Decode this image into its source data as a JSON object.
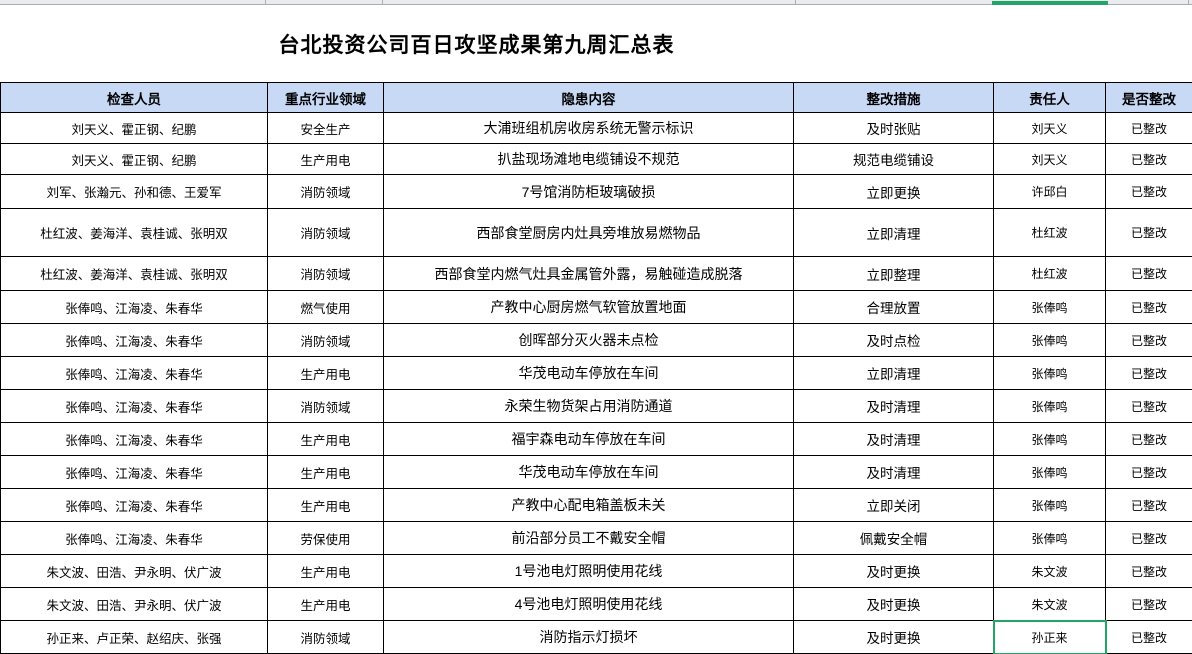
{
  "app": {
    "selection_color": "#22a567",
    "header_bg": "#c7d9f5"
  },
  "title": "台北投资公司百日攻坚成果第九周汇总表",
  "table": {
    "headers": [
      "检查人员",
      "重点行业领域",
      "隐患内容",
      "整改措施",
      "责任人",
      "是否整改"
    ],
    "col_keys": [
      "inspectors",
      "industry",
      "hazard",
      "measure",
      "owner",
      "status"
    ],
    "rows": [
      {
        "inspectors": "刘天义、霍正钢、纪鹏",
        "industry": "安全生产",
        "hazard": "大浦班组机房收房系统无警示标识",
        "measure": "及时张贴",
        "owner": "刘天义",
        "status": "已整改"
      },
      {
        "inspectors": "刘天义、霍正钢、纪鹏",
        "industry": "生产用电",
        "hazard": "扒盐现场滩地电缆铺设不规范",
        "measure": "规范电缆铺设",
        "owner": "刘天义",
        "status": "已整改"
      },
      {
        "inspectors": "刘军、张瀚元、孙和德、王爱军",
        "industry": "消防领域",
        "hazard": "7号馆消防柜玻璃破损",
        "measure": "立即更换",
        "owner": "许邱白",
        "status": "已整改"
      },
      {
        "inspectors": "杜红波、姜海洋、袁桂诚、张明双",
        "industry": "消防领域",
        "hazard": "西部食堂厨房内灶具旁堆放易燃物品",
        "measure": "立即清理",
        "owner": "杜红波",
        "status": "已整改"
      },
      {
        "inspectors": "杜红波、姜海洋、袁桂诚、张明双",
        "industry": "消防领域",
        "hazard": "西部食堂内燃气灶具金属管外露，易触碰造成脱落",
        "measure": "立即整理",
        "owner": "杜红波",
        "status": "已整改"
      },
      {
        "inspectors": "张俸鸣、江海凌、朱春华",
        "industry": "燃气使用",
        "hazard": "产教中心厨房燃气软管放置地面",
        "measure": "合理放置",
        "owner": "张俸鸣",
        "status": "已整改"
      },
      {
        "inspectors": "张俸鸣、江海凌、朱春华",
        "industry": "消防领域",
        "hazard": "创晖部分灭火器未点检",
        "measure": "及时点检",
        "owner": "张俸鸣",
        "status": "已整改"
      },
      {
        "inspectors": "张俸鸣、江海凌、朱春华",
        "industry": "生产用电",
        "hazard": "华茂电动车停放在车间",
        "measure": "立即清理",
        "owner": "张俸鸣",
        "status": "已整改"
      },
      {
        "inspectors": "张俸鸣、江海凌、朱春华",
        "industry": "消防领域",
        "hazard": "永荣生物货架占用消防通道",
        "measure": "及时清理",
        "owner": "张俸鸣",
        "status": "已整改"
      },
      {
        "inspectors": "张俸鸣、江海凌、朱春华",
        "industry": "生产用电",
        "hazard": "福宇森电动车停放在车间",
        "measure": "及时清理",
        "owner": "张俸鸣",
        "status": "已整改"
      },
      {
        "inspectors": "张俸鸣、江海凌、朱春华",
        "industry": "生产用电",
        "hazard": "华茂电动车停放在车间",
        "measure": "及时清理",
        "owner": "张俸鸣",
        "status": "已整改"
      },
      {
        "inspectors": "张俸鸣、江海凌、朱春华",
        "industry": "生产用电",
        "hazard": "产教中心配电箱盖板未关",
        "measure": "立即关闭",
        "owner": "张俸鸣",
        "status": "已整改"
      },
      {
        "inspectors": "张俸鸣、江海凌、朱春华",
        "industry": "劳保使用",
        "hazard": "前沿部分员工不戴安全帽",
        "measure": "佩戴安全帽",
        "owner": "张俸鸣",
        "status": "已整改"
      },
      {
        "inspectors": "朱文波、田浩、尹永明、伏广波",
        "industry": "生产用电",
        "hazard": "1号池电灯照明使用花线",
        "measure": "及时更换",
        "owner": "朱文波",
        "status": "已整改"
      },
      {
        "inspectors": "朱文波、田浩、尹永明、伏广波",
        "industry": "生产用电",
        "hazard": "4号池电灯照明使用花线",
        "measure": "及时更换",
        "owner": "朱文波",
        "status": "已整改"
      },
      {
        "inspectors": "孙正来、卢正荣、赵绍庆、张强",
        "industry": "消防领域",
        "hazard": "消防指示灯损坏",
        "measure": "及时更换",
        "owner": "孙正来",
        "status": "已整改"
      }
    ]
  },
  "selection": {
    "row": 15,
    "column": "owner"
  }
}
